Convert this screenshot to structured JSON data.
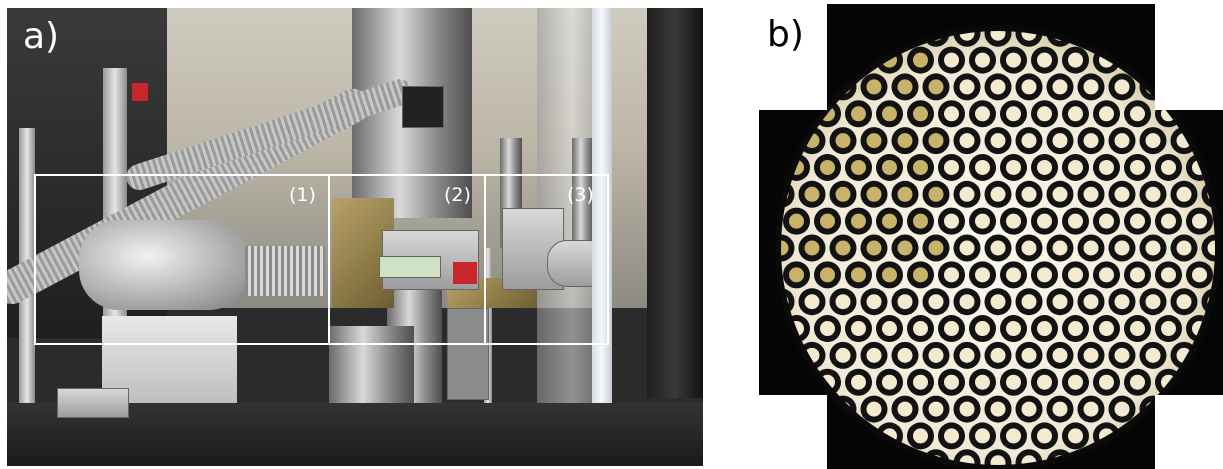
{
  "panel_a": {
    "label": "a)",
    "regions": [
      {
        "label": "(1)"
      },
      {
        "label": "(2)"
      },
      {
        "label": "(3)"
      }
    ]
  },
  "panel_b": {
    "label": "b)"
  },
  "colors": {
    "frame": "#ffffff",
    "label_a": "#ffffff",
    "label_b": "#000000",
    "fiber_core": "#f3ead0",
    "fiber_core_dim": "#c9b36a",
    "fiber_cladding": "#121212",
    "illumination": "#fbf8ee"
  }
}
